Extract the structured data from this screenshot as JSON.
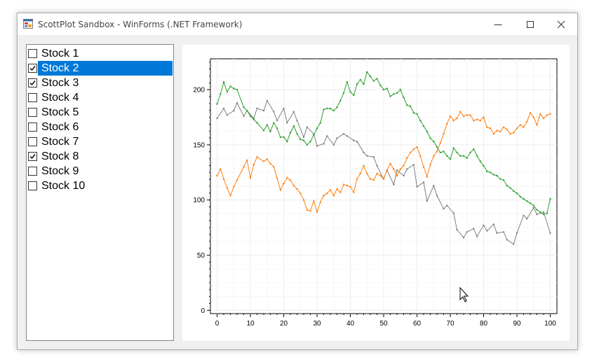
{
  "window": {
    "title": "ScottPlot Sandbox - WinForms (.NET Framework)",
    "icon": "app-icon",
    "buttons": [
      "minimize-icon",
      "maximize-icon",
      "close-icon"
    ]
  },
  "list": {
    "items": [
      {
        "label": "Stock 1",
        "checked": false,
        "selected": false
      },
      {
        "label": "Stock 2",
        "checked": true,
        "selected": true
      },
      {
        "label": "Stock 3",
        "checked": true,
        "selected": false
      },
      {
        "label": "Stock 4",
        "checked": false,
        "selected": false
      },
      {
        "label": "Stock 5",
        "checked": false,
        "selected": false
      },
      {
        "label": "Stock 6",
        "checked": false,
        "selected": false
      },
      {
        "label": "Stock 7",
        "checked": false,
        "selected": false
      },
      {
        "label": "Stock 8",
        "checked": true,
        "selected": false
      },
      {
        "label": "Stock 9",
        "checked": false,
        "selected": false
      },
      {
        "label": "Stock 10",
        "checked": false,
        "selected": false
      }
    ]
  },
  "colors": {
    "selection": "#0078d7",
    "series_gray": "#808080",
    "series_orange": "#ff7f0e",
    "series_green": "#2ca02c"
  },
  "chart_data": {
    "type": "line",
    "title": "",
    "xlabel": "",
    "ylabel": "",
    "xlim": [
      -2,
      102
    ],
    "ylim": [
      -3,
      228
    ],
    "grid": true,
    "xticks": [
      0,
      10,
      20,
      30,
      40,
      50,
      60,
      70,
      80,
      90,
      100
    ],
    "yticks": [
      0,
      50,
      100,
      150,
      200
    ],
    "series": [
      {
        "name": "Stock 2",
        "color": "#808080",
        "x": [
          0,
          2,
          3,
          5,
          6,
          8,
          9,
          11,
          12,
          14,
          15,
          17,
          18,
          20,
          21,
          23,
          24,
          26,
          27,
          29,
          30,
          32,
          33,
          35,
          36,
          38,
          39,
          41,
          42,
          44,
          45,
          47,
          48,
          50,
          51,
          53,
          54,
          56,
          57,
          59,
          60,
          62,
          63,
          65,
          66,
          68,
          69,
          71,
          72,
          74,
          75,
          77,
          78,
          80,
          81,
          83,
          84,
          86,
          87,
          89,
          90,
          92,
          93,
          95,
          96,
          98,
          100
        ],
        "values": [
          174,
          183,
          177,
          181,
          188,
          176,
          181,
          174,
          183,
          181,
          190,
          180,
          172,
          183,
          170,
          180,
          172,
          157,
          166,
          160,
          149,
          151,
          158,
          150,
          156,
          160,
          158,
          154,
          153,
          143,
          140,
          139,
          131,
          119,
          127,
          114,
          127,
          122,
          128,
          132,
          112,
          116,
          99,
          113,
          104,
          92,
          95,
          88,
          73,
          66,
          71,
          74,
          67,
          77,
          72,
          78,
          70,
          71,
          64,
          60,
          70,
          86,
          83,
          93,
          87,
          89,
          70
        ]
      },
      {
        "name": "Stock 3",
        "color": "#ff7f0e",
        "x": [
          0,
          1,
          2,
          3,
          4,
          5,
          6,
          8,
          9,
          10,
          11,
          12,
          14,
          15,
          16,
          17,
          18,
          19,
          20,
          21,
          22,
          23,
          24,
          25,
          26,
          27,
          28,
          29,
          30,
          31,
          32,
          33,
          34,
          35,
          36,
          37,
          38,
          39,
          40,
          41,
          42,
          43,
          44,
          45,
          46,
          47,
          48,
          49,
          50,
          51,
          52,
          53,
          54,
          55,
          56,
          57,
          58,
          59,
          60,
          61,
          62,
          63,
          64,
          65,
          66,
          67,
          68,
          69,
          70,
          71,
          72,
          73,
          74,
          75,
          76,
          77,
          78,
          79,
          80,
          81,
          82,
          83,
          84,
          85,
          86,
          87,
          88,
          89,
          90,
          91,
          92,
          93,
          94,
          95,
          96,
          97,
          98,
          99,
          100
        ],
        "values": [
          122,
          128,
          119,
          111,
          104,
          112,
          118,
          130,
          136,
          120,
          132,
          139,
          135,
          137,
          133,
          130,
          120,
          109,
          115,
          120,
          118,
          113,
          110,
          106,
          100,
          91,
          90,
          99,
          89,
          98,
          104,
          106,
          109,
          104,
          110,
          107,
          114,
          113,
          112,
          107,
          119,
          124,
          131,
          124,
          119,
          118,
          124,
          122,
          119,
          127,
          133,
          128,
          122,
          128,
          131,
          138,
          143,
          146,
          148,
          140,
          130,
          121,
          132,
          140,
          144,
          152,
          160,
          169,
          176,
          172,
          174,
          180,
          176,
          177,
          177,
          172,
          173,
          172,
          175,
          166,
          165,
          160,
          163,
          162,
          166,
          164,
          160,
          161,
          165,
          168,
          166,
          171,
          179,
          175,
          168,
          178,
          174,
          177,
          178
        ]
      },
      {
        "name": "Stock 8",
        "color": "#2ca02c",
        "x": [
          0,
          1,
          2,
          3,
          4,
          5,
          6,
          8,
          9,
          10,
          11,
          12,
          14,
          15,
          16,
          17,
          18,
          19,
          20,
          21,
          22,
          23,
          24,
          25,
          26,
          27,
          28,
          29,
          30,
          31,
          32,
          33,
          34,
          35,
          36,
          37,
          38,
          39,
          40,
          41,
          42,
          43,
          44,
          45,
          46,
          47,
          48,
          49,
          50,
          51,
          52,
          53,
          54,
          55,
          56,
          57,
          58,
          59,
          60,
          61,
          62,
          63,
          64,
          65,
          66,
          67,
          68,
          69,
          70,
          71,
          72,
          73,
          74,
          75,
          76,
          77,
          78,
          79,
          80,
          81,
          82,
          83,
          84,
          85,
          86,
          87,
          88,
          89,
          90,
          91,
          92,
          93,
          94,
          95,
          96,
          97,
          98,
          99,
          100
        ],
        "values": [
          187,
          196,
          207,
          198,
          203,
          201,
          200,
          184,
          181,
          176,
          173,
          170,
          163,
          168,
          162,
          170,
          165,
          157,
          157,
          153,
          161,
          167,
          160,
          155,
          154,
          150,
          153,
          159,
          165,
          170,
          182,
          183,
          183,
          181,
          184,
          190,
          197,
          207,
          198,
          195,
          205,
          209,
          205,
          216,
          212,
          208,
          210,
          204,
          200,
          201,
          194,
          196,
          197,
          200,
          193,
          186,
          185,
          179,
          178,
          172,
          167,
          162,
          156,
          153,
          148,
          143,
          144,
          140,
          137,
          147,
          143,
          140,
          140,
          138,
          143,
          146,
          140,
          135,
          131,
          126,
          125,
          123,
          122,
          119,
          118,
          113,
          111,
          108,
          106,
          103,
          101,
          99,
          97,
          95,
          91,
          89,
          87,
          88,
          101
        ]
      }
    ]
  }
}
